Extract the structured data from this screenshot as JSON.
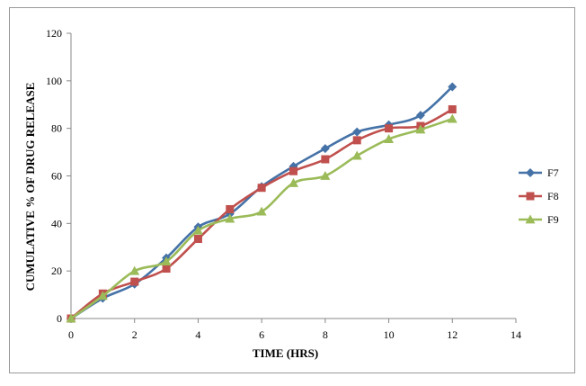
{
  "chart_data": {
    "type": "line",
    "xlabel": "TIME (HRS)",
    "ylabel": "CUMULATIVE % OF DRUG RELEASE",
    "xlim": [
      0,
      14
    ],
    "ylim": [
      0,
      120
    ],
    "x_ticks": [
      0,
      2,
      4,
      6,
      8,
      10,
      12,
      14
    ],
    "y_ticks": [
      0,
      20,
      40,
      60,
      80,
      100,
      120
    ],
    "grid": false,
    "legend_position": "right",
    "x": [
      0,
      1,
      2,
      3,
      4,
      5,
      6,
      7,
      8,
      9,
      10,
      11,
      12
    ],
    "series": [
      {
        "name": "F7",
        "color": "#4572A7",
        "marker": "diamond",
        "values": [
          0,
          8.5,
          14.5,
          25.5,
          38.5,
          44,
          55.5,
          64,
          71.5,
          78.5,
          81.5,
          85.5,
          97.5
        ]
      },
      {
        "name": "F8",
        "color": "#C0504D",
        "marker": "square",
        "values": [
          0,
          10.5,
          15.5,
          21,
          33.5,
          46,
          55,
          62,
          67,
          75,
          80,
          81,
          88
        ]
      },
      {
        "name": "F9",
        "color": "#9BBB59",
        "marker": "triangle",
        "values": [
          0,
          9.5,
          20,
          24,
          37,
          42,
          45,
          57,
          60,
          68.5,
          75.5,
          79.5,
          84
        ]
      }
    ]
  }
}
